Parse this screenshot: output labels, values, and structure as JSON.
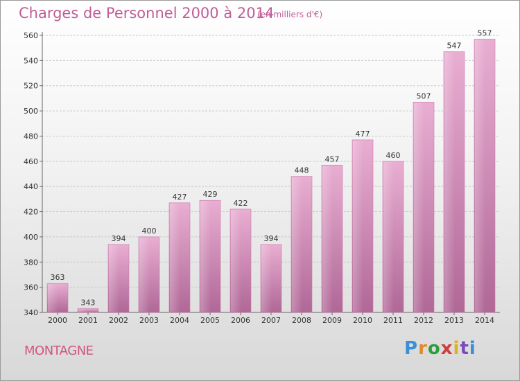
{
  "header": {
    "title": "Charges de Personnel 2000 à 2014",
    "subtitle": "(en milliers d'€)"
  },
  "footer": {
    "commune": "MONTAGNE",
    "logo_text": "Proxiti"
  },
  "colors": {
    "bar_light": "#e7a9cf",
    "bar_dark": "#b76c9c",
    "title": "#c15d97",
    "commune": "#d0557f",
    "grid": "#c8c8c8"
  },
  "chart_data": {
    "type": "bar",
    "title": "Charges de Personnel 2000 à 2014",
    "subtitle": "(en milliers d'€)",
    "categories": [
      "2000",
      "2001",
      "2002",
      "2003",
      "2004",
      "2005",
      "2006",
      "2007",
      "2008",
      "2009",
      "2010",
      "2011",
      "2012",
      "2013",
      "2014"
    ],
    "values": [
      363,
      343,
      394,
      400,
      427,
      429,
      422,
      394,
      448,
      457,
      477,
      460,
      507,
      547,
      557
    ],
    "ylim": [
      340,
      560
    ],
    "yticks": [
      340,
      360,
      380,
      400,
      420,
      440,
      460,
      480,
      500,
      520,
      540,
      560
    ],
    "grid": true,
    "data_labels": true
  }
}
